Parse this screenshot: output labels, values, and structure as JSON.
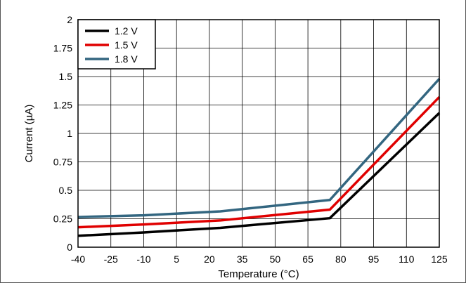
{
  "chart_data": {
    "type": "line",
    "title": "",
    "xlabel": "Temperature (°C)",
    "ylabel": "Current (µA)",
    "xlim": [
      -40,
      125
    ],
    "ylim": [
      0,
      2
    ],
    "x_ticks": [
      "-40",
      "-25",
      "-10",
      "5",
      "20",
      "35",
      "50",
      "65",
      "80",
      "95",
      "110",
      "125"
    ],
    "y_ticks": [
      "0",
      "0.25",
      "0.5",
      "0.75",
      "1",
      "1.25",
      "1.5",
      "1.75",
      "2"
    ],
    "grid": true,
    "legend_position": "top-left",
    "series": [
      {
        "name": "1.2 V",
        "color": "#000000",
        "x": [
          -40,
          -10,
          25,
          75,
          125
        ],
        "y": [
          0.1,
          0.13,
          0.17,
          0.255,
          1.18
        ]
      },
      {
        "name": "1.5 V",
        "color": "#e00000",
        "x": [
          -40,
          -10,
          25,
          75,
          125
        ],
        "y": [
          0.175,
          0.2,
          0.235,
          0.33,
          1.32
        ]
      },
      {
        "name": "1.8 V",
        "color": "#336680",
        "x": [
          -40,
          -10,
          25,
          75,
          125
        ],
        "y": [
          0.265,
          0.28,
          0.315,
          0.415,
          1.48
        ]
      }
    ]
  }
}
